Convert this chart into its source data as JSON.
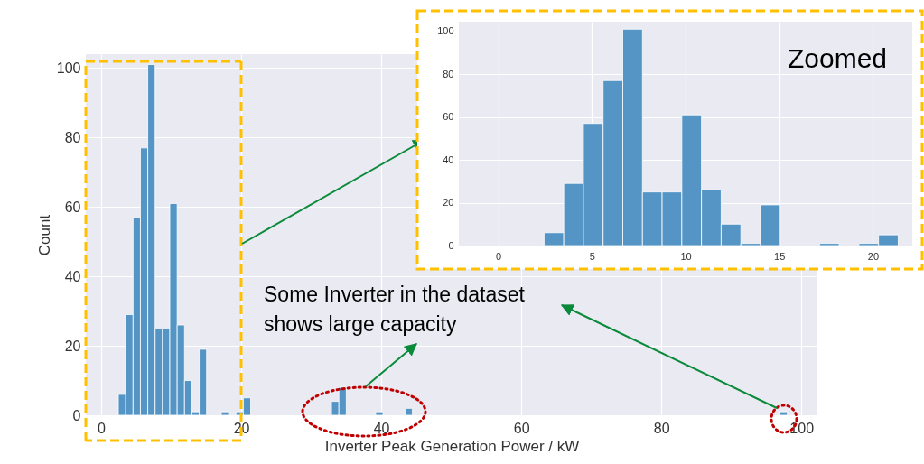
{
  "chart_data": [
    {
      "type": "histogram",
      "xlabel": "Inverter Peak Generation Power / kW",
      "ylabel": "Count",
      "color": "#5495c5",
      "grid": true,
      "bins": [
        2.45,
        3.5,
        4.55,
        5.6,
        6.65,
        7.7,
        8.75,
        9.8,
        10.85,
        11.9,
        12.95,
        14,
        15.05,
        16.1,
        17.15,
        18.2,
        19.25,
        20.3,
        21.35,
        22.4,
        23.45,
        24.5,
        25.55,
        26.6,
        27.65,
        28.7,
        29.75,
        30.8,
        31.85,
        32.9,
        33.95,
        35,
        36.05,
        37.1,
        38.15,
        39.2,
        40.25,
        41.3,
        42.35,
        43.4,
        44.45,
        45.5,
        46.55,
        47.6,
        48.65,
        49.7,
        50.75,
        51.8,
        52.85,
        53.9,
        54.95,
        56,
        57.05,
        58.1,
        59.15,
        60.2,
        61.25,
        62.3,
        63.35,
        64.4,
        65.45,
        66.5,
        67.55,
        68.6,
        69.65,
        70.7,
        71.75,
        72.8,
        73.85,
        74.9,
        75.95,
        77,
        78.05,
        79.1,
        80.15,
        81.2,
        82.25,
        83.3,
        84.35,
        85.4,
        86.45,
        87.5,
        88.55,
        89.6,
        90.65,
        91.7,
        92.75,
        93.8,
        94.85,
        95.9,
        96.95,
        98
      ],
      "values": [
        6,
        29,
        57,
        77,
        101,
        25,
        25,
        61,
        26,
        10,
        1,
        19,
        0,
        0,
        1,
        0,
        1,
        5,
        0,
        0,
        0,
        0,
        0,
        0,
        0,
        0,
        0,
        0,
        0,
        4,
        8,
        0,
        0,
        0,
        0,
        1,
        0,
        0,
        0,
        2,
        0,
        0,
        0,
        0,
        0,
        0,
        0,
        0,
        0,
        0,
        0,
        0,
        0,
        0,
        0,
        0,
        0,
        0,
        0,
        0,
        0,
        0,
        0,
        0,
        0,
        0,
        0,
        0,
        0,
        0,
        0,
        0,
        0,
        0,
        0,
        0,
        0,
        0,
        0,
        0,
        0,
        0,
        0,
        0,
        0,
        0,
        0,
        0,
        0,
        0,
        1
      ],
      "xlim": [
        -2.2,
        102.3
      ],
      "ylim": [
        0,
        104
      ],
      "xticks": [
        0,
        20,
        40,
        60,
        80,
        100
      ],
      "yticks": [
        0,
        20,
        40,
        60,
        80,
        100
      ],
      "annotations": [
        "Some Inverter in the dataset shows large capacity"
      ]
    },
    {
      "type": "histogram",
      "color": "#5495c5",
      "grid": true,
      "bins": [
        2.45,
        3.5,
        4.55,
        5.6,
        6.65,
        7.7,
        8.75,
        9.8,
        10.85,
        11.9,
        12.95,
        14,
        15.05,
        16.1,
        17.15,
        18.2,
        19.25,
        20.3,
        21.35
      ],
      "values": [
        6,
        29,
        57,
        77,
        101,
        25,
        25,
        61,
        26,
        10,
        1,
        19,
        0,
        0,
        1,
        0,
        1,
        5
      ],
      "xlim": [
        -2.1,
        22.1
      ],
      "ylim": [
        0,
        104.5
      ],
      "xticks": [
        0,
        5,
        10,
        15,
        20
      ],
      "yticks": [
        0,
        20,
        40,
        60,
        80,
        100
      ],
      "annotations": [
        "Zoomed"
      ]
    }
  ]
}
